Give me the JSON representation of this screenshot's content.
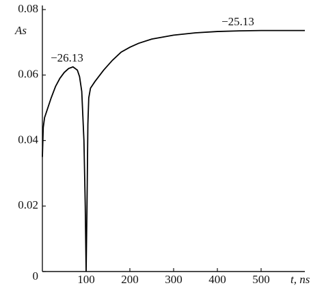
{
  "chart_data": {
    "type": "line",
    "x_label": "t, ns",
    "y_label": "As",
    "x": [
      0,
      2,
      5,
      10,
      20,
      30,
      40,
      50,
      60,
      70,
      80,
      85,
      90,
      95,
      98,
      100,
      102,
      104,
      106,
      110,
      120,
      140,
      160,
      180,
      200,
      220,
      250,
      300,
      350,
      400,
      450,
      500,
      600
    ],
    "series": [
      {
        "color": "#000000",
        "values": [
          0.035,
          0.044,
          0.047,
          0.049,
          0.053,
          0.0565,
          0.059,
          0.0608,
          0.062,
          0.0625,
          0.0615,
          0.0595,
          0.055,
          0.04,
          0.02,
          0,
          0.02,
          0.045,
          0.053,
          0.056,
          0.058,
          0.0615,
          0.0645,
          0.067,
          0.0685,
          0.0697,
          0.071,
          0.0722,
          0.0729,
          0.0733,
          0.0735,
          0.0736,
          0.0736
        ]
      }
    ],
    "annotations": [
      "−26.13",
      "−25.13"
    ],
    "xlim": [
      0,
      600
    ],
    "xticks": [
      100,
      200,
      300,
      400,
      500
    ],
    "ylim": [
      0,
      0.08
    ],
    "yticks": [
      0,
      0.02,
      0.04,
      0.06,
      0.08
    ]
  }
}
